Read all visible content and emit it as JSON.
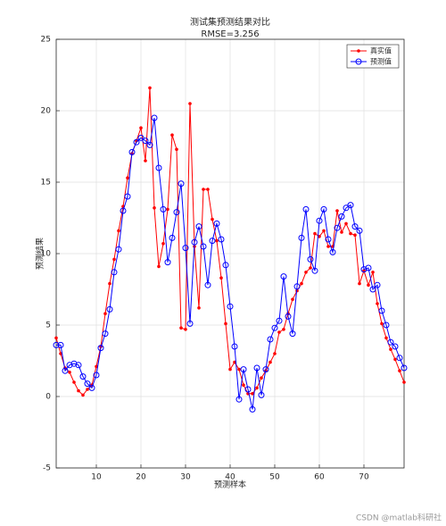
{
  "chart_data": {
    "type": "line",
    "title": "测试集预测结果对比",
    "subtitle": "RMSE=3.256",
    "x_label": "预测样本",
    "y_label": "预测结果",
    "x": [
      1,
      2,
      3,
      4,
      5,
      6,
      7,
      8,
      9,
      10,
      11,
      12,
      13,
      14,
      15,
      16,
      17,
      18,
      19,
      20,
      21,
      22,
      23,
      24,
      25,
      26,
      27,
      28,
      29,
      30,
      31,
      32,
      33,
      34,
      35,
      36,
      37,
      38,
      39,
      40,
      41,
      42,
      43,
      44,
      45,
      46,
      47,
      48,
      49,
      50,
      51,
      52,
      53,
      54,
      55,
      56,
      57,
      58,
      59,
      60,
      61,
      62,
      63,
      64,
      65,
      66,
      67,
      68,
      69,
      70,
      71,
      72,
      73,
      74,
      75,
      76,
      77,
      78,
      79
    ],
    "series": [
      {
        "name": "真实值",
        "color": "#ff0000",
        "marker": "dot",
        "values": [
          4.1,
          3.0,
          2.0,
          1.7,
          1.0,
          0.4,
          0.1,
          0.5,
          0.8,
          2.1,
          3.5,
          5.8,
          7.9,
          9.6,
          11.6,
          13.3,
          15.3,
          17.0,
          17.9,
          18.8,
          16.5,
          21.6,
          13.2,
          9.1,
          10.7,
          13.1,
          18.3,
          17.3,
          4.8,
          4.7,
          20.5,
          10.5,
          6.2,
          14.5,
          14.5,
          12.4,
          10.9,
          8.3,
          5.1,
          1.9,
          2.4,
          1.9,
          0.8,
          0.2,
          0.2,
          0.6,
          1.3,
          1.8,
          2.4,
          3.0,
          4.5,
          4.7,
          5.8,
          6.8,
          7.4,
          7.9,
          8.7,
          9.0,
          11.4,
          11.2,
          11.6,
          10.5,
          10.5,
          13.0,
          11.5,
          12.1,
          11.4,
          11.3,
          7.9,
          8.8,
          7.8,
          8.7,
          6.5,
          5.1,
          4.1,
          3.3,
          2.6,
          1.8,
          1.0
        ]
      },
      {
        "name": "预测值",
        "color": "#0000ff",
        "marker": "circle",
        "values": [
          3.6,
          3.6,
          1.8,
          2.2,
          2.3,
          2.2,
          1.4,
          0.9,
          0.6,
          1.5,
          3.4,
          4.4,
          6.1,
          8.7,
          10.3,
          13.0,
          14.0,
          17.1,
          17.8,
          18.1,
          17.9,
          17.6,
          19.5,
          16.0,
          13.1,
          9.4,
          11.1,
          12.9,
          14.9,
          10.4,
          5.1,
          10.8,
          11.9,
          10.5,
          7.8,
          10.9,
          12.1,
          11.0,
          9.2,
          6.3,
          3.5,
          -0.2,
          1.9,
          0.5,
          -0.9,
          2.0,
          0.1,
          1.9,
          4.0,
          4.8,
          5.3,
          8.4,
          5.6,
          4.4,
          7.7,
          11.1,
          13.1,
          9.6,
          8.8,
          12.3,
          13.1,
          11.0,
          10.1,
          11.8,
          12.6,
          13.2,
          13.4,
          11.9,
          11.6,
          8.9,
          9.0,
          7.5,
          7.8,
          6.0,
          5.0,
          3.8,
          3.5,
          2.7,
          2.0
        ]
      }
    ],
    "xlim": [
      1,
      79
    ],
    "xticks": [
      10,
      20,
      30,
      40,
      50,
      60,
      70
    ],
    "ylim": [
      -5,
      25
    ],
    "yticks": [
      -5,
      0,
      5,
      10,
      15,
      20,
      25
    ],
    "grid": true,
    "legend_position": "upper-right"
  },
  "watermark": "CSDN @matlab科研社"
}
